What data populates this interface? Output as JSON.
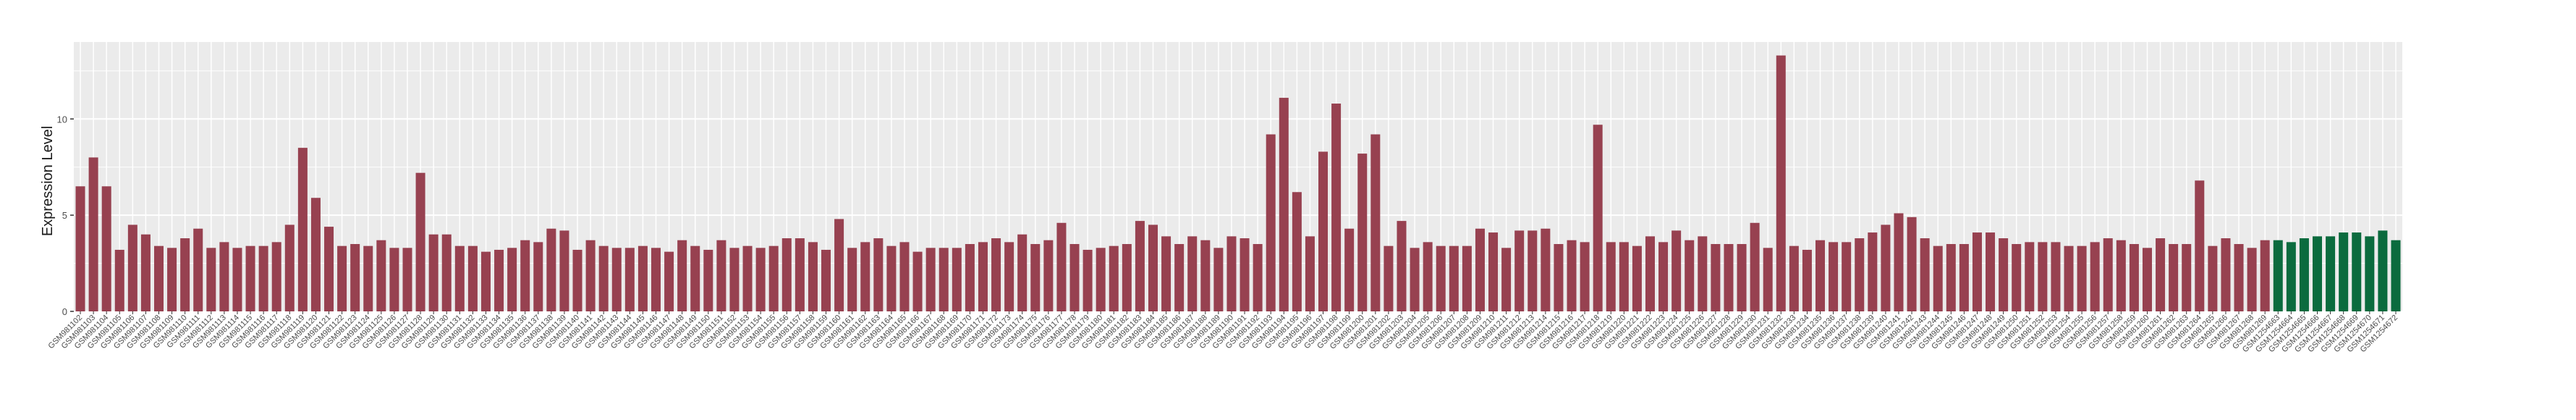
{
  "chart_data": {
    "type": "bar",
    "title": "",
    "xlabel": "",
    "ylabel": "Expression Level",
    "ylim": [
      0,
      14
    ],
    "yticks": [
      0,
      5,
      10
    ],
    "grid": true,
    "colors": {
      "case": "#974150",
      "control": "#0B6B3E",
      "panel_bg": "#EBEBEB",
      "grid": "#FFFFFF"
    },
    "samples": [
      {
        "id": "GSM981102",
        "value": 6.5,
        "group": "case"
      },
      {
        "id": "GSM981103",
        "value": 8.0,
        "group": "case"
      },
      {
        "id": "GSM981104",
        "value": 6.5,
        "group": "case"
      },
      {
        "id": "GSM981105",
        "value": 3.2,
        "group": "case"
      },
      {
        "id": "GSM981106",
        "value": 4.5,
        "group": "case"
      },
      {
        "id": "GSM981107",
        "value": 4.0,
        "group": "case"
      },
      {
        "id": "GSM981108",
        "value": 3.4,
        "group": "case"
      },
      {
        "id": "GSM981109",
        "value": 3.3,
        "group": "case"
      },
      {
        "id": "GSM981110",
        "value": 3.8,
        "group": "case"
      },
      {
        "id": "GSM981111",
        "value": 4.3,
        "group": "case"
      },
      {
        "id": "GSM981112",
        "value": 3.3,
        "group": "case"
      },
      {
        "id": "GSM981113",
        "value": 3.6,
        "group": "case"
      },
      {
        "id": "GSM981114",
        "value": 3.3,
        "group": "case"
      },
      {
        "id": "GSM981115",
        "value": 3.4,
        "group": "case"
      },
      {
        "id": "GSM981116",
        "value": 3.4,
        "group": "case"
      },
      {
        "id": "GSM981117",
        "value": 3.6,
        "group": "case"
      },
      {
        "id": "GSM981118",
        "value": 4.5,
        "group": "case"
      },
      {
        "id": "GSM981119",
        "value": 8.5,
        "group": "case"
      },
      {
        "id": "GSM981120",
        "value": 5.9,
        "group": "case"
      },
      {
        "id": "GSM981121",
        "value": 4.4,
        "group": "case"
      },
      {
        "id": "GSM981122",
        "value": 3.4,
        "group": "case"
      },
      {
        "id": "GSM981123",
        "value": 3.5,
        "group": "case"
      },
      {
        "id": "GSM981124",
        "value": 3.4,
        "group": "case"
      },
      {
        "id": "GSM981125",
        "value": 3.7,
        "group": "case"
      },
      {
        "id": "GSM981126",
        "value": 3.3,
        "group": "case"
      },
      {
        "id": "GSM981127",
        "value": 3.3,
        "group": "case"
      },
      {
        "id": "GSM981128",
        "value": 7.2,
        "group": "case"
      },
      {
        "id": "GSM981129",
        "value": 4.0,
        "group": "case"
      },
      {
        "id": "GSM981130",
        "value": 4.0,
        "group": "case"
      },
      {
        "id": "GSM981131",
        "value": 3.4,
        "group": "case"
      },
      {
        "id": "GSM981132",
        "value": 3.4,
        "group": "case"
      },
      {
        "id": "GSM981133",
        "value": 3.1,
        "group": "case"
      },
      {
        "id": "GSM981134",
        "value": 3.2,
        "group": "case"
      },
      {
        "id": "GSM981135",
        "value": 3.3,
        "group": "case"
      },
      {
        "id": "GSM981136",
        "value": 3.7,
        "group": "case"
      },
      {
        "id": "GSM981137",
        "value": 3.6,
        "group": "case"
      },
      {
        "id": "GSM981138",
        "value": 4.3,
        "group": "case"
      },
      {
        "id": "GSM981139",
        "value": 4.2,
        "group": "case"
      },
      {
        "id": "GSM981140",
        "value": 3.2,
        "group": "case"
      },
      {
        "id": "GSM981141",
        "value": 3.7,
        "group": "case"
      },
      {
        "id": "GSM981142",
        "value": 3.4,
        "group": "case"
      },
      {
        "id": "GSM981143",
        "value": 3.3,
        "group": "case"
      },
      {
        "id": "GSM981144",
        "value": 3.3,
        "group": "case"
      },
      {
        "id": "GSM981145",
        "value": 3.4,
        "group": "case"
      },
      {
        "id": "GSM981146",
        "value": 3.3,
        "group": "case"
      },
      {
        "id": "GSM981147",
        "value": 3.1,
        "group": "case"
      },
      {
        "id": "GSM981148",
        "value": 3.7,
        "group": "case"
      },
      {
        "id": "GSM981149",
        "value": 3.4,
        "group": "case"
      },
      {
        "id": "GSM981150",
        "value": 3.2,
        "group": "case"
      },
      {
        "id": "GSM981151",
        "value": 3.7,
        "group": "case"
      },
      {
        "id": "GSM981152",
        "value": 3.3,
        "group": "case"
      },
      {
        "id": "GSM981153",
        "value": 3.4,
        "group": "case"
      },
      {
        "id": "GSM981154",
        "value": 3.3,
        "group": "case"
      },
      {
        "id": "GSM981155",
        "value": 3.4,
        "group": "case"
      },
      {
        "id": "GSM981156",
        "value": 3.8,
        "group": "case"
      },
      {
        "id": "GSM981157",
        "value": 3.8,
        "group": "case"
      },
      {
        "id": "GSM981158",
        "value": 3.6,
        "group": "case"
      },
      {
        "id": "GSM981159",
        "value": 3.2,
        "group": "case"
      },
      {
        "id": "GSM981160",
        "value": 4.8,
        "group": "case"
      },
      {
        "id": "GSM981161",
        "value": 3.3,
        "group": "case"
      },
      {
        "id": "GSM981162",
        "value": 3.6,
        "group": "case"
      },
      {
        "id": "GSM981163",
        "value": 3.8,
        "group": "case"
      },
      {
        "id": "GSM981164",
        "value": 3.4,
        "group": "case"
      },
      {
        "id": "GSM981165",
        "value": 3.6,
        "group": "case"
      },
      {
        "id": "GSM981166",
        "value": 3.1,
        "group": "case"
      },
      {
        "id": "GSM981167",
        "value": 3.3,
        "group": "case"
      },
      {
        "id": "GSM981168",
        "value": 3.3,
        "group": "case"
      },
      {
        "id": "GSM981169",
        "value": 3.3,
        "group": "case"
      },
      {
        "id": "GSM981170",
        "value": 3.5,
        "group": "case"
      },
      {
        "id": "GSM981171",
        "value": 3.6,
        "group": "case"
      },
      {
        "id": "GSM981172",
        "value": 3.8,
        "group": "case"
      },
      {
        "id": "GSM981173",
        "value": 3.6,
        "group": "case"
      },
      {
        "id": "GSM981174",
        "value": 4.0,
        "group": "case"
      },
      {
        "id": "GSM981175",
        "value": 3.5,
        "group": "case"
      },
      {
        "id": "GSM981176",
        "value": 3.7,
        "group": "case"
      },
      {
        "id": "GSM981177",
        "value": 4.6,
        "group": "case"
      },
      {
        "id": "GSM981178",
        "value": 3.5,
        "group": "case"
      },
      {
        "id": "GSM981179",
        "value": 3.2,
        "group": "case"
      },
      {
        "id": "GSM981180",
        "value": 3.3,
        "group": "case"
      },
      {
        "id": "GSM981181",
        "value": 3.4,
        "group": "case"
      },
      {
        "id": "GSM981182",
        "value": 3.5,
        "group": "case"
      },
      {
        "id": "GSM981183",
        "value": 4.7,
        "group": "case"
      },
      {
        "id": "GSM981184",
        "value": 4.5,
        "group": "case"
      },
      {
        "id": "GSM981185",
        "value": 3.9,
        "group": "case"
      },
      {
        "id": "GSM981186",
        "value": 3.5,
        "group": "case"
      },
      {
        "id": "GSM981187",
        "value": 3.9,
        "group": "case"
      },
      {
        "id": "GSM981188",
        "value": 3.7,
        "group": "case"
      },
      {
        "id": "GSM981189",
        "value": 3.3,
        "group": "case"
      },
      {
        "id": "GSM981190",
        "value": 3.9,
        "group": "case"
      },
      {
        "id": "GSM981191",
        "value": 3.8,
        "group": "case"
      },
      {
        "id": "GSM981192",
        "value": 3.5,
        "group": "case"
      },
      {
        "id": "GSM981193",
        "value": 9.2,
        "group": "case"
      },
      {
        "id": "GSM981194",
        "value": 11.1,
        "group": "case"
      },
      {
        "id": "GSM981195",
        "value": 6.2,
        "group": "case"
      },
      {
        "id": "GSM981196",
        "value": 3.9,
        "group": "case"
      },
      {
        "id": "GSM981197",
        "value": 8.3,
        "group": "case"
      },
      {
        "id": "GSM981198",
        "value": 10.8,
        "group": "case"
      },
      {
        "id": "GSM981199",
        "value": 4.3,
        "group": "case"
      },
      {
        "id": "GSM981200",
        "value": 8.2,
        "group": "case"
      },
      {
        "id": "GSM981201",
        "value": 9.2,
        "group": "case"
      },
      {
        "id": "GSM981202",
        "value": 3.4,
        "group": "case"
      },
      {
        "id": "GSM981203",
        "value": 4.7,
        "group": "case"
      },
      {
        "id": "GSM981204",
        "value": 3.3,
        "group": "case"
      },
      {
        "id": "GSM981205",
        "value": 3.6,
        "group": "case"
      },
      {
        "id": "GSM981206",
        "value": 3.4,
        "group": "case"
      },
      {
        "id": "GSM981207",
        "value": 3.4,
        "group": "case"
      },
      {
        "id": "GSM981208",
        "value": 3.4,
        "group": "case"
      },
      {
        "id": "GSM981209",
        "value": 4.3,
        "group": "case"
      },
      {
        "id": "GSM981210",
        "value": 4.1,
        "group": "case"
      },
      {
        "id": "GSM981211",
        "value": 3.3,
        "group": "case"
      },
      {
        "id": "GSM981212",
        "value": 4.2,
        "group": "case"
      },
      {
        "id": "GSM981213",
        "value": 4.2,
        "group": "case"
      },
      {
        "id": "GSM981214",
        "value": 4.3,
        "group": "case"
      },
      {
        "id": "GSM981215",
        "value": 3.5,
        "group": "case"
      },
      {
        "id": "GSM981216",
        "value": 3.7,
        "group": "case"
      },
      {
        "id": "GSM981217",
        "value": 3.6,
        "group": "case"
      },
      {
        "id": "GSM981218",
        "value": 9.7,
        "group": "case"
      },
      {
        "id": "GSM981219",
        "value": 3.6,
        "group": "case"
      },
      {
        "id": "GSM981220",
        "value": 3.6,
        "group": "case"
      },
      {
        "id": "GSM981221",
        "value": 3.4,
        "group": "case"
      },
      {
        "id": "GSM981222",
        "value": 3.9,
        "group": "case"
      },
      {
        "id": "GSM981223",
        "value": 3.6,
        "group": "case"
      },
      {
        "id": "GSM981224",
        "value": 4.2,
        "group": "case"
      },
      {
        "id": "GSM981225",
        "value": 3.7,
        "group": "case"
      },
      {
        "id": "GSM981226",
        "value": 3.9,
        "group": "case"
      },
      {
        "id": "GSM981227",
        "value": 3.5,
        "group": "case"
      },
      {
        "id": "GSM981228",
        "value": 3.5,
        "group": "case"
      },
      {
        "id": "GSM981229",
        "value": 3.5,
        "group": "case"
      },
      {
        "id": "GSM981230",
        "value": 4.6,
        "group": "case"
      },
      {
        "id": "GSM981231",
        "value": 3.3,
        "group": "case"
      },
      {
        "id": "GSM981232",
        "value": 13.3,
        "group": "case"
      },
      {
        "id": "GSM981233",
        "value": 3.4,
        "group": "case"
      },
      {
        "id": "GSM981234",
        "value": 3.2,
        "group": "case"
      },
      {
        "id": "GSM981235",
        "value": 3.7,
        "group": "case"
      },
      {
        "id": "GSM981236",
        "value": 3.6,
        "group": "case"
      },
      {
        "id": "GSM981237",
        "value": 3.6,
        "group": "case"
      },
      {
        "id": "GSM981238",
        "value": 3.8,
        "group": "case"
      },
      {
        "id": "GSM981239",
        "value": 4.1,
        "group": "case"
      },
      {
        "id": "GSM981240",
        "value": 4.5,
        "group": "case"
      },
      {
        "id": "GSM981241",
        "value": 5.1,
        "group": "case"
      },
      {
        "id": "GSM981242",
        "value": 4.9,
        "group": "case"
      },
      {
        "id": "GSM981243",
        "value": 3.8,
        "group": "case"
      },
      {
        "id": "GSM981244",
        "value": 3.4,
        "group": "case"
      },
      {
        "id": "GSM981245",
        "value": 3.5,
        "group": "case"
      },
      {
        "id": "GSM981246",
        "value": 3.5,
        "group": "case"
      },
      {
        "id": "GSM981247",
        "value": 4.1,
        "group": "case"
      },
      {
        "id": "GSM981248",
        "value": 4.1,
        "group": "case"
      },
      {
        "id": "GSM981249",
        "value": 3.8,
        "group": "case"
      },
      {
        "id": "GSM981250",
        "value": 3.5,
        "group": "case"
      },
      {
        "id": "GSM981251",
        "value": 3.6,
        "group": "case"
      },
      {
        "id": "GSM981252",
        "value": 3.6,
        "group": "case"
      },
      {
        "id": "GSM981253",
        "value": 3.6,
        "group": "case"
      },
      {
        "id": "GSM981254",
        "value": 3.4,
        "group": "case"
      },
      {
        "id": "GSM981255",
        "value": 3.4,
        "group": "case"
      },
      {
        "id": "GSM981256",
        "value": 3.6,
        "group": "case"
      },
      {
        "id": "GSM981257",
        "value": 3.8,
        "group": "case"
      },
      {
        "id": "GSM981258",
        "value": 3.7,
        "group": "case"
      },
      {
        "id": "GSM981259",
        "value": 3.5,
        "group": "case"
      },
      {
        "id": "GSM981260",
        "value": 3.3,
        "group": "case"
      },
      {
        "id": "GSM981261",
        "value": 3.8,
        "group": "case"
      },
      {
        "id": "GSM981262",
        "value": 3.5,
        "group": "case"
      },
      {
        "id": "GSM981263",
        "value": 3.5,
        "group": "case"
      },
      {
        "id": "GSM981264",
        "value": 6.8,
        "group": "case"
      },
      {
        "id": "GSM981265",
        "value": 3.4,
        "group": "case"
      },
      {
        "id": "GSM981266",
        "value": 3.8,
        "group": "case"
      },
      {
        "id": "GSM981267",
        "value": 3.5,
        "group": "case"
      },
      {
        "id": "GSM981268",
        "value": 3.3,
        "group": "case"
      },
      {
        "id": "GSM981269",
        "value": 3.7,
        "group": "case"
      },
      {
        "id": "GSM1254663",
        "value": 3.7,
        "group": "control"
      },
      {
        "id": "GSM1254664",
        "value": 3.6,
        "group": "control"
      },
      {
        "id": "GSM1254665",
        "value": 3.8,
        "group": "control"
      },
      {
        "id": "GSM1254666",
        "value": 3.9,
        "group": "control"
      },
      {
        "id": "GSM1254667",
        "value": 3.9,
        "group": "control"
      },
      {
        "id": "GSM1254668",
        "value": 4.1,
        "group": "control"
      },
      {
        "id": "GSM1254669",
        "value": 4.1,
        "group": "control"
      },
      {
        "id": "GSM1254670",
        "value": 3.9,
        "group": "control"
      },
      {
        "id": "GSM1254671",
        "value": 4.2,
        "group": "control"
      },
      {
        "id": "GSM1254672",
        "value": 3.7,
        "group": "control"
      }
    ]
  }
}
